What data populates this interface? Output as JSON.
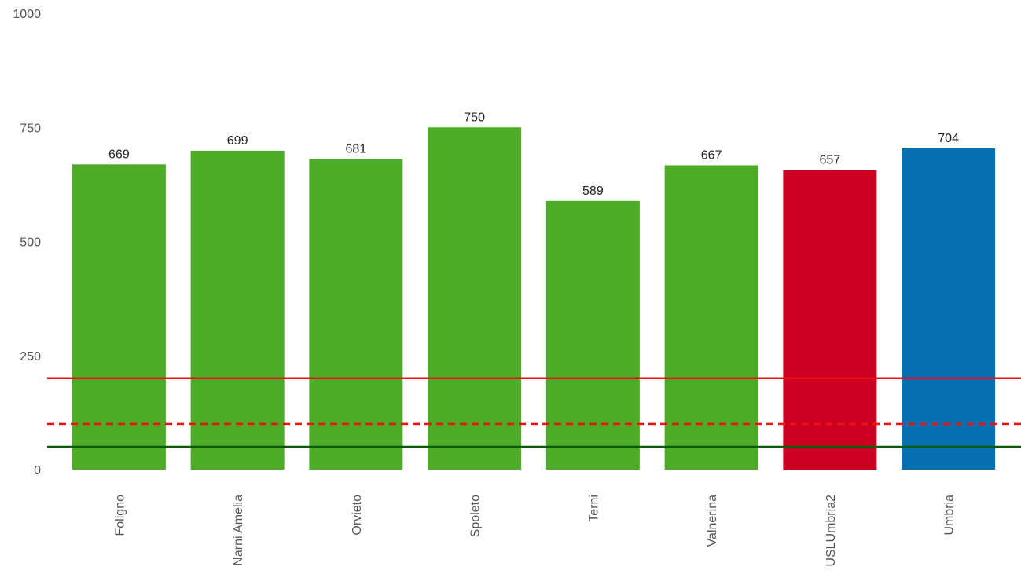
{
  "chart_data": {
    "type": "bar",
    "categories": [
      "Foligno",
      "Narni Amelia",
      "Orvieto",
      "Spoleto",
      "Terni",
      "Valnerina",
      "USLUmbria2",
      "Umbria"
    ],
    "values": [
      669,
      699,
      681,
      750,
      589,
      667,
      657,
      704
    ],
    "colors": [
      "#4dab27",
      "#4dab27",
      "#4dab27",
      "#4dab27",
      "#4dab27",
      "#4dab27",
      "#cc0020",
      "#0870b0"
    ],
    "ylim": [
      0,
      1000
    ],
    "yticks": [
      0,
      250,
      500,
      750,
      1000
    ],
    "grid": false,
    "reference_lines": [
      {
        "value": 200,
        "color": "#ee1111",
        "style": "solid"
      },
      {
        "value": 100,
        "color": "#ee1111",
        "style": "dashed"
      },
      {
        "value": 50,
        "color": "#0a5a0a",
        "style": "solid"
      }
    ]
  }
}
